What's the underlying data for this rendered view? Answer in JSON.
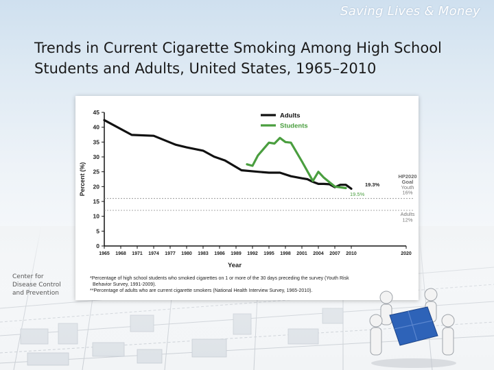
{
  "header": {
    "tagline": "Saving Lives & Money",
    "title_line1": "Trends in Current Cigarette Smoking Among High School",
    "title_line2": "Students and Adults, United States, 1965–2010"
  },
  "org": {
    "line1": "Center for",
    "line2": "Disease Control",
    "line3": "and Prevention"
  },
  "chart_data": {
    "type": "line",
    "ylabel": "Percent (%)",
    "xlabel": "Year",
    "ylim": [
      0,
      45
    ],
    "xlim": [
      1965,
      2020
    ],
    "yticks": [
      0,
      5,
      10,
      15,
      20,
      25,
      30,
      35,
      40,
      45
    ],
    "xticks": [
      1965,
      1968,
      1971,
      1974,
      1977,
      1980,
      1983,
      1986,
      1989,
      1992,
      1995,
      1998,
      2001,
      2004,
      2007,
      2010,
      2020
    ],
    "legend_position": "top",
    "series": [
      {
        "name": "Adults",
        "color": "#111111",
        "points": [
          [
            1965,
            42.4
          ],
          [
            1970,
            37.4
          ],
          [
            1974,
            37.1
          ],
          [
            1978,
            34.1
          ],
          [
            1980,
            33.2
          ],
          [
            1983,
            32.1
          ],
          [
            1985,
            30.1
          ],
          [
            1987,
            28.8
          ],
          [
            1990,
            25.5
          ],
          [
            1993,
            25.0
          ],
          [
            1995,
            24.7
          ],
          [
            1997,
            24.7
          ],
          [
            1999,
            23.5
          ],
          [
            2001,
            22.8
          ],
          [
            2002,
            22.5
          ],
          [
            2003,
            21.6
          ],
          [
            2004,
            20.9
          ],
          [
            2005,
            20.9
          ],
          [
            2006,
            20.8
          ],
          [
            2007,
            19.8
          ],
          [
            2008,
            20.6
          ],
          [
            2009,
            20.6
          ],
          [
            2010,
            19.3
          ]
        ]
      },
      {
        "name": "Students",
        "color": "#4a9e3f",
        "points": [
          [
            1991,
            27.5
          ],
          [
            1992,
            27.0
          ],
          [
            1993,
            30.5
          ],
          [
            1995,
            34.8
          ],
          [
            1996,
            34.5
          ],
          [
            1997,
            36.4
          ],
          [
            1998,
            35.0
          ],
          [
            1999,
            34.8
          ],
          [
            2001,
            28.5
          ],
          [
            2003,
            21.9
          ],
          [
            2004,
            25.0
          ],
          [
            2005,
            23.0
          ],
          [
            2007,
            20.0
          ],
          [
            2009,
            19.5
          ]
        ]
      }
    ],
    "goals": [
      {
        "label": "Youth",
        "value": "16%",
        "y": 16
      },
      {
        "label": "Adults",
        "value": "12%",
        "y": 12
      }
    ],
    "goal_title_1": "HP2020",
    "goal_title_2": "Goal",
    "annotations": {
      "adults_end": "19.3%",
      "students_end": "19.5%"
    },
    "footnotes": [
      "*Percentage of high school students who smoked cigarettes on 1 or more of the 30 days preceding the survey (Youth Risk",
      "Behavior Survey, 1991-2009).",
      "**Percentage of adults who are current cigarette smokers (National Health Interview Survey, 1965-2010)."
    ]
  }
}
